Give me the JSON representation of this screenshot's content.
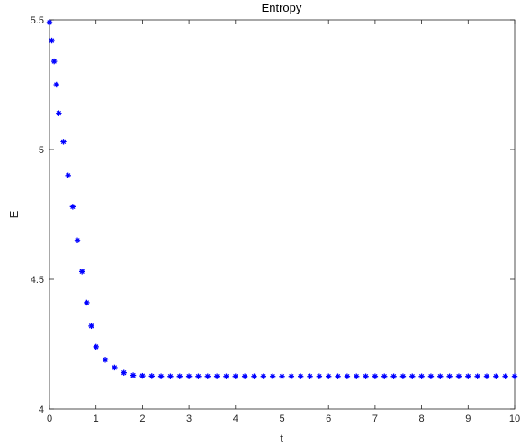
{
  "chart_data": {
    "type": "scatter",
    "title": "Entropy",
    "xlabel": "t",
    "ylabel": "E",
    "xlim": [
      0,
      10
    ],
    "ylim": [
      4,
      5.5
    ],
    "xticks": [
      "0",
      "1",
      "2",
      "3",
      "4",
      "5",
      "6",
      "7",
      "8",
      "9",
      "10"
    ],
    "yticks": [
      "4",
      "4.5",
      "5",
      "5.5"
    ],
    "grid": false,
    "marker": "asterisk",
    "color": "#0000ff",
    "series": [
      {
        "x": [
          0,
          0.05,
          0.1,
          0.15,
          0.2,
          0.3,
          0.4,
          0.5,
          0.6,
          0.7,
          0.8,
          0.9,
          1.0,
          1.2,
          1.4,
          1.6,
          1.8,
          2.0,
          2.2,
          2.4,
          2.6,
          2.8,
          3.0,
          3.2,
          3.4,
          3.6,
          3.8,
          4.0,
          4.2,
          4.4,
          4.6,
          4.8,
          5.0,
          5.2,
          5.4,
          5.6,
          5.8,
          6.0,
          6.2,
          6.4,
          6.6,
          6.8,
          7.0,
          7.2,
          7.4,
          7.6,
          7.8,
          8.0,
          8.2,
          8.4,
          8.6,
          8.8,
          9.0,
          9.2,
          9.4,
          9.6,
          9.8,
          10.0
        ],
        "y": [
          5.49,
          5.42,
          5.34,
          5.25,
          5.14,
          5.03,
          4.9,
          4.78,
          4.65,
          4.53,
          4.41,
          4.32,
          4.24,
          4.19,
          4.16,
          4.14,
          4.13,
          4.128,
          4.127,
          4.126,
          4.126,
          4.126,
          4.126,
          4.126,
          4.126,
          4.126,
          4.126,
          4.126,
          4.126,
          4.126,
          4.126,
          4.126,
          4.126,
          4.126,
          4.126,
          4.126,
          4.126,
          4.126,
          4.126,
          4.126,
          4.126,
          4.126,
          4.126,
          4.126,
          4.126,
          4.126,
          4.126,
          4.126,
          4.126,
          4.126,
          4.126,
          4.126,
          4.126,
          4.126,
          4.126,
          4.126,
          4.126,
          4.126
        ]
      }
    ]
  }
}
